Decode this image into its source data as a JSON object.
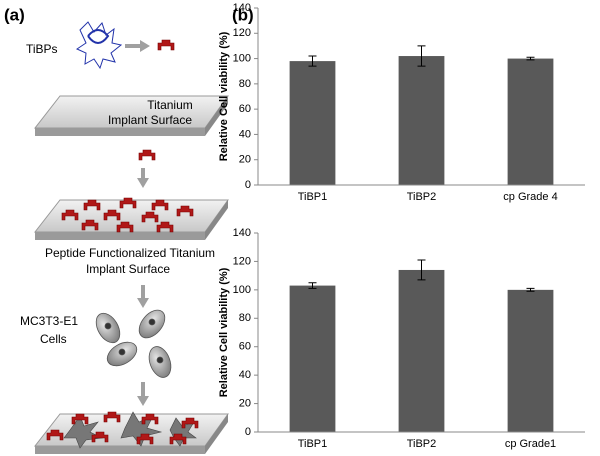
{
  "panel_a": {
    "label": "(a)",
    "tibps": "TiBPs",
    "surface": [
      "Titanium",
      "Implant Surface"
    ],
    "functionalized": [
      "Peptide Functionalized  Titanium",
      "Implant Surface"
    ],
    "cells": [
      "MC3T3-E1",
      "Cells"
    ]
  },
  "panel_b": {
    "label": "(b)"
  },
  "chart_data": [
    {
      "type": "bar",
      "ylabel": "Relative Cell viability (%)",
      "categories": [
        "TiBP1",
        "TiBP2",
        "cp Grade 4"
      ],
      "values": [
        98,
        102,
        100
      ],
      "errors": [
        4,
        8,
        1
      ],
      "color": "#595959",
      "ylim": [
        0,
        140
      ],
      "yticks": [
        0,
        20,
        40,
        60,
        80,
        100,
        120,
        140
      ]
    },
    {
      "type": "bar",
      "ylabel": "Relative Cell viability (%)",
      "categories": [
        "TiBP1",
        "TiBP2",
        "cp Grade1"
      ],
      "values": [
        103,
        114,
        100
      ],
      "errors": [
        2,
        7,
        1
      ],
      "color": "#595959",
      "ylim": [
        0,
        140
      ],
      "yticks": [
        0,
        20,
        40,
        60,
        80,
        100,
        120,
        140
      ]
    }
  ]
}
